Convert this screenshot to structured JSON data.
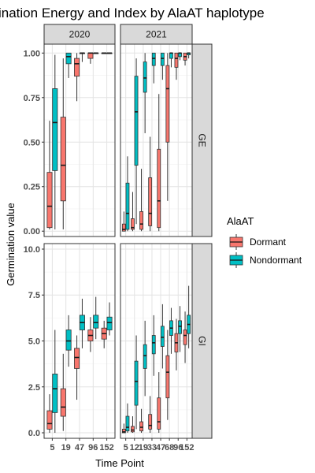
{
  "chart_data": {
    "type": "boxplot",
    "title": "ination Energy and Index by AlaAT haplotype",
    "xlabel": "Time Point",
    "ylabel": "Germination value",
    "legend": {
      "title": "AlaAT",
      "position": "right",
      "entries": [
        {
          "name": "Dormant",
          "color": "#F8766D"
        },
        {
          "name": "Nondormant",
          "color": "#00BFC4"
        }
      ]
    },
    "facet_cols": [
      "2020",
      "2021"
    ],
    "facet_rows": [
      "GE",
      "GI"
    ],
    "x_tick_labels": {
      "2020": [
        "5",
        "19",
        "47",
        "96",
        "152"
      ],
      "2021": [
        "5",
        "12",
        "19",
        "33",
        "47",
        "68",
        "96",
        "152"
      ]
    },
    "x_tick_label_text_2021": "5121933476896152",
    "rows": {
      "GE": {
        "ylim": [
          -0.03,
          1.05
        ],
        "yticks": [
          "0.00",
          "0.25",
          "0.50",
          "0.75",
          "1.00"
        ],
        "ytick_values": [
          0,
          0.25,
          0.5,
          0.75,
          1.0
        ]
      },
      "GI": {
        "ylim": [
          -0.3,
          10.3
        ],
        "yticks": [
          "0.0",
          "2.5",
          "5.0",
          "7.5",
          "10.0"
        ],
        "ytick_values": [
          0,
          2.5,
          5.0,
          7.5,
          10.0
        ]
      }
    },
    "grid": true,
    "boxes": {
      "GE": {
        "2020": [
          {
            "x": 5,
            "group": "Dormant",
            "min": 0.01,
            "q1": 0.02,
            "median": 0.14,
            "q3": 0.33,
            "max": 0.62
          },
          {
            "x": 5,
            "group": "Nondormant",
            "min": 0.01,
            "q1": 0.34,
            "median": 0.61,
            "q3": 0.8,
            "max": 0.99
          },
          {
            "x": 19,
            "group": "Dormant",
            "min": 0.01,
            "q1": 0.17,
            "median": 0.37,
            "q3": 0.64,
            "max": 0.97
          },
          {
            "x": 19,
            "group": "Nondormant",
            "min": 0.86,
            "q1": 0.94,
            "median": 0.98,
            "q3": 1.0,
            "max": 1.0
          },
          {
            "x": 47,
            "group": "Dormant",
            "min": 0.73,
            "q1": 0.87,
            "median": 0.94,
            "q3": 0.97,
            "max": 1.0
          },
          {
            "x": 47,
            "group": "Nondormant",
            "min": 0.95,
            "q1": 1.0,
            "median": 1.0,
            "q3": 1.0,
            "max": 1.0
          },
          {
            "x": 96,
            "group": "Dormant",
            "min": 0.94,
            "q1": 0.97,
            "median": 1.0,
            "q3": 1.0,
            "max": 1.0
          },
          {
            "x": 96,
            "group": "Nondormant",
            "min": 1.0,
            "q1": 1.0,
            "median": 1.0,
            "q3": 1.0,
            "max": 1.0
          },
          {
            "x": 152,
            "group": "Dormant",
            "min": 1.0,
            "q1": 1.0,
            "median": 1.0,
            "q3": 1.0,
            "max": 1.0
          },
          {
            "x": 152,
            "group": "Nondormant",
            "min": 1.0,
            "q1": 1.0,
            "median": 1.0,
            "q3": 1.0,
            "max": 1.0
          }
        ],
        "2021": [
          {
            "x": 5,
            "group": "Dormant",
            "min": 0.0,
            "q1": 0.0,
            "median": 0.01,
            "q3": 0.04,
            "max": 0.11
          },
          {
            "x": 5,
            "group": "Nondormant",
            "min": 0.0,
            "q1": 0.01,
            "median": 0.1,
            "q3": 0.27,
            "max": 0.42
          },
          {
            "x": 12,
            "group": "Dormant",
            "min": 0.0,
            "q1": 0.01,
            "median": 0.02,
            "q3": 0.07,
            "max": 0.22
          },
          {
            "x": 12,
            "group": "Nondormant",
            "min": 0.04,
            "q1": 0.37,
            "median": 0.67,
            "q3": 0.87,
            "max": 0.97
          },
          {
            "x": 19,
            "group": "Dormant",
            "min": 0.0,
            "q1": 0.01,
            "median": 0.04,
            "q3": 0.11,
            "max": 0.35
          },
          {
            "x": 19,
            "group": "Nondormant",
            "min": 0.55,
            "q1": 0.78,
            "median": 0.86,
            "q3": 0.95,
            "max": 1.0
          },
          {
            "x": 33,
            "group": "Dormant",
            "min": 0.0,
            "q1": 0.03,
            "median": 0.1,
            "q3": 0.3,
            "max": 0.53
          },
          {
            "x": 33,
            "group": "Nondormant",
            "min": 0.83,
            "q1": 0.93,
            "median": 0.97,
            "q3": 1.0,
            "max": 1.0
          },
          {
            "x": 47,
            "group": "Dormant",
            "min": 0.0,
            "q1": 0.02,
            "median": 0.17,
            "q3": 0.46,
            "max": 0.77
          },
          {
            "x": 47,
            "group": "Nondormant",
            "min": 0.85,
            "q1": 0.93,
            "median": 0.97,
            "q3": 1.0,
            "max": 1.0
          },
          {
            "x": 68,
            "group": "Dormant",
            "min": 0.17,
            "q1": 0.5,
            "median": 0.8,
            "q3": 0.93,
            "max": 1.0
          },
          {
            "x": 68,
            "group": "Nondormant",
            "min": 0.92,
            "q1": 0.97,
            "median": 1.0,
            "q3": 1.0,
            "max": 1.0
          },
          {
            "x": 96,
            "group": "Dormant",
            "min": 0.85,
            "q1": 0.92,
            "median": 0.97,
            "q3": 1.0,
            "max": 1.0
          },
          {
            "x": 96,
            "group": "Nondormant",
            "min": 0.96,
            "q1": 0.98,
            "median": 1.0,
            "q3": 1.0,
            "max": 1.0
          },
          {
            "x": 152,
            "group": "Dormant",
            "min": 0.93,
            "q1": 0.96,
            "median": 0.98,
            "q3": 1.0,
            "max": 1.0
          },
          {
            "x": 152,
            "group": "Nondormant",
            "min": 0.97,
            "q1": 0.99,
            "median": 1.0,
            "q3": 1.0,
            "max": 1.0
          }
        ]
      },
      "GI": {
        "2020": [
          {
            "x": 5,
            "group": "Dormant",
            "min": 0.0,
            "q1": 0.2,
            "median": 0.5,
            "q3": 1.2,
            "max": 2.1
          },
          {
            "x": 5,
            "group": "Nondormant",
            "min": 0.0,
            "q1": 1.1,
            "median": 2.4,
            "q3": 3.2,
            "max": 5.6
          },
          {
            "x": 19,
            "group": "Dormant",
            "min": 0.1,
            "q1": 0.9,
            "median": 1.4,
            "q3": 2.4,
            "max": 4.3
          },
          {
            "x": 19,
            "group": "Nondormant",
            "min": 3.6,
            "q1": 4.5,
            "median": 5.0,
            "q3": 5.6,
            "max": 6.4
          },
          {
            "x": 47,
            "group": "Dormant",
            "min": 1.8,
            "q1": 3.5,
            "median": 4.1,
            "q3": 4.6,
            "max": 5.3
          },
          {
            "x": 47,
            "group": "Nondormant",
            "min": 4.6,
            "q1": 5.6,
            "median": 6.0,
            "q3": 6.4,
            "max": 7.3
          },
          {
            "x": 96,
            "group": "Dormant",
            "min": 4.4,
            "q1": 5.0,
            "median": 5.3,
            "q3": 5.6,
            "max": 6.3
          },
          {
            "x": 96,
            "group": "Nondormant",
            "min": 5.1,
            "q1": 5.7,
            "median": 6.0,
            "q3": 6.4,
            "max": 7.4
          },
          {
            "x": 152,
            "group": "Dormant",
            "min": 4.6,
            "q1": 5.1,
            "median": 5.4,
            "q3": 5.7,
            "max": 6.1
          },
          {
            "x": 152,
            "group": "Nondormant",
            "min": 5.3,
            "q1": 5.6,
            "median": 6.0,
            "q3": 6.3,
            "max": 7.1
          }
        ],
        "2021": [
          {
            "x": 5,
            "group": "Dormant",
            "min": 0.0,
            "q1": 0.0,
            "median": 0.05,
            "q3": 0.2,
            "max": 0.5
          },
          {
            "x": 5,
            "group": "Nondormant",
            "min": 0.0,
            "q1": 0.1,
            "median": 0.3,
            "q3": 0.9,
            "max": 1.6
          },
          {
            "x": 12,
            "group": "Dormant",
            "min": 0.0,
            "q1": 0.05,
            "median": 0.15,
            "q3": 0.35,
            "max": 0.9
          },
          {
            "x": 12,
            "group": "Nondormant",
            "min": 0.2,
            "q1": 1.5,
            "median": 2.8,
            "q3": 3.9,
            "max": 5.3
          },
          {
            "x": 19,
            "group": "Dormant",
            "min": 0.0,
            "q1": 0.1,
            "median": 0.3,
            "q3": 0.6,
            "max": 1.3
          },
          {
            "x": 19,
            "group": "Nondormant",
            "min": 2.0,
            "q1": 3.5,
            "median": 4.2,
            "q3": 4.8,
            "max": 6.1
          },
          {
            "x": 33,
            "group": "Dormant",
            "min": 0.0,
            "q1": 0.2,
            "median": 0.4,
            "q3": 1.0,
            "max": 2.0
          },
          {
            "x": 33,
            "group": "Nondormant",
            "min": 3.1,
            "q1": 4.3,
            "median": 4.9,
            "q3": 5.3,
            "max": 6.4
          },
          {
            "x": 47,
            "group": "Dormant",
            "min": 0.0,
            "q1": 0.2,
            "median": 0.6,
            "q3": 1.9,
            "max": 3.3
          },
          {
            "x": 47,
            "group": "Nondormant",
            "min": 3.5,
            "q1": 4.7,
            "median": 5.2,
            "q3": 5.8,
            "max": 7.0
          },
          {
            "x": 68,
            "group": "Dormant",
            "min": 0.7,
            "q1": 1.9,
            "median": 3.3,
            "q3": 4.2,
            "max": 5.6
          },
          {
            "x": 68,
            "group": "Nondormant",
            "min": 4.3,
            "q1": 5.3,
            "median": 5.7,
            "q3": 6.1,
            "max": 6.8
          },
          {
            "x": 96,
            "group": "Dormant",
            "min": 3.4,
            "q1": 4.4,
            "median": 4.9,
            "q3": 5.4,
            "max": 6.2
          },
          {
            "x": 96,
            "group": "Nondormant",
            "min": 4.4,
            "q1": 5.4,
            "median": 5.8,
            "q3": 6.1,
            "max": 6.9
          },
          {
            "x": 152,
            "group": "Dormant",
            "min": 3.8,
            "q1": 4.8,
            "median": 5.3,
            "q3": 5.6,
            "max": 6.6
          },
          {
            "x": 152,
            "group": "Nondormant",
            "min": 4.6,
            "q1": 5.4,
            "median": 5.9,
            "q3": 6.4,
            "max": 8.0
          }
        ]
      }
    }
  }
}
